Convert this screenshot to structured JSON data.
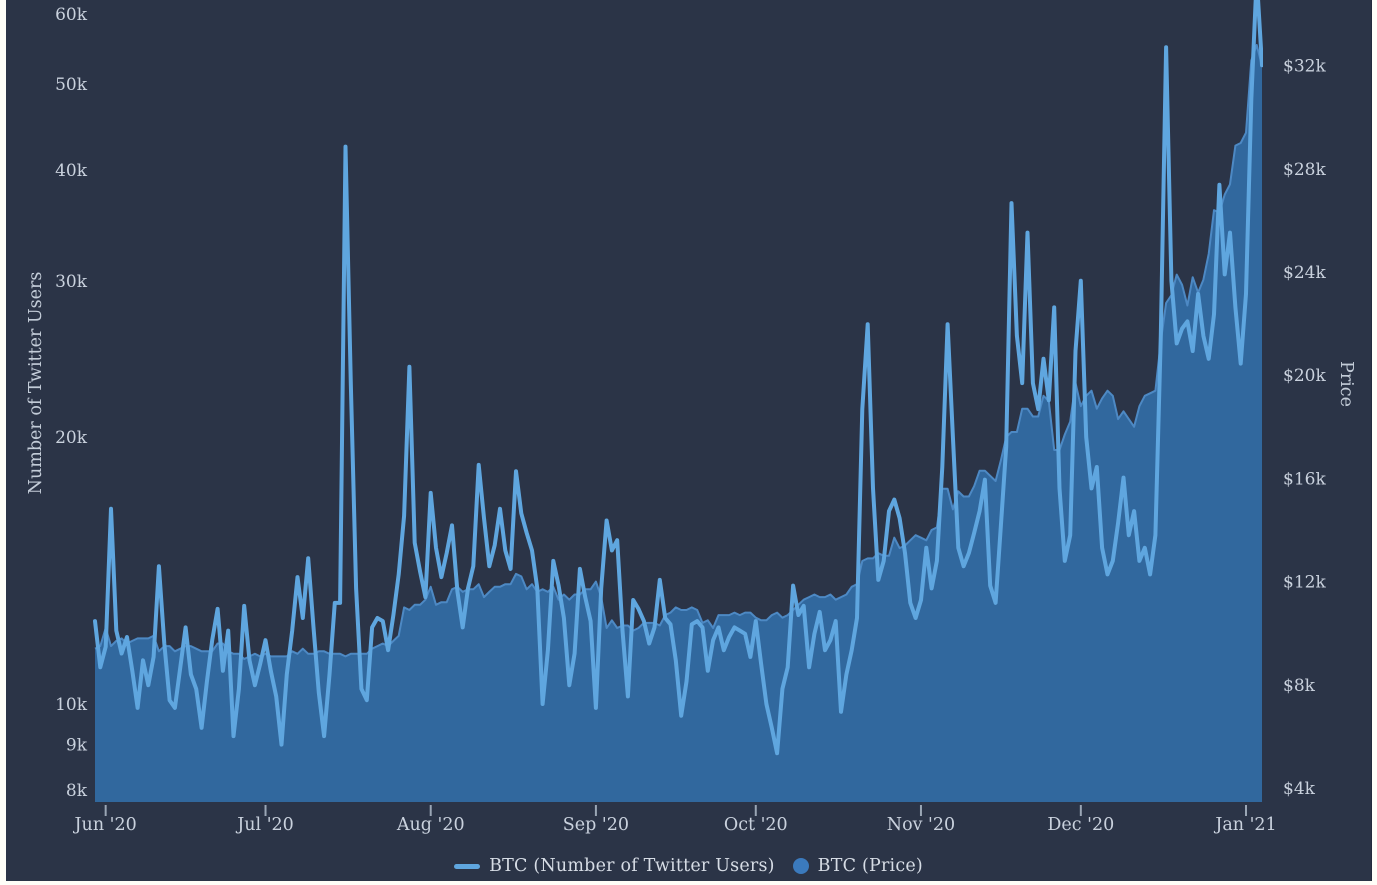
{
  "colors": {
    "page_background": "#fffef8",
    "panel_background": "#2b3447",
    "tick_text": "#c9d1dd",
    "axis_title_text": "#c3ccd8",
    "tick_mark": "#9aa6b5",
    "legend_text": "#d6dce5"
  },
  "legend": {
    "position": "bottom-center",
    "items": [
      {
        "label": "BTC (Number of Twitter Users)",
        "marker": "line",
        "color": "#5fa6df"
      },
      {
        "label": "BTC (Price)",
        "marker": "circle",
        "color": "#3b7abd"
      }
    ]
  },
  "chart_data": {
    "type": "line+area",
    "title": "",
    "grid": false,
    "legend_position": "bottom-center",
    "x_unit": "date",
    "x_start": "2020-05-30",
    "x_step_days": 1,
    "x_count": 220,
    "x_ticks": [
      {
        "label": "Jun '20",
        "date": "2020-06-01"
      },
      {
        "label": "Jul '20",
        "date": "2020-07-01"
      },
      {
        "label": "Aug '20",
        "date": "2020-08-01"
      },
      {
        "label": "Sep '20",
        "date": "2020-09-01"
      },
      {
        "label": "Oct '20",
        "date": "2020-10-01"
      },
      {
        "label": "Nov '20",
        "date": "2020-11-01"
      },
      {
        "label": "Dec '20",
        "date": "2020-12-01"
      },
      {
        "label": "Jan '21",
        "date": "2021-01-01"
      }
    ],
    "left_axis": {
      "label": "Number of Twitter Users",
      "scale": "log",
      "range_k": [
        7.75,
        62.3
      ],
      "ticks": [
        {
          "label": "8k",
          "value_k": 8
        },
        {
          "label": "9k",
          "value_k": 9
        },
        {
          "label": "10k",
          "value_k": 10
        },
        {
          "label": "20k",
          "value_k": 20
        },
        {
          "label": "30k",
          "value_k": 30
        },
        {
          "label": "40k",
          "value_k": 40
        },
        {
          "label": "50k",
          "value_k": 50
        },
        {
          "label": "60k",
          "value_k": 60
        }
      ]
    },
    "right_axis": {
      "label": "Price",
      "scale": "linear",
      "range_k": [
        3.4,
        34.5
      ],
      "ticks": [
        {
          "label": "$4k",
          "value_k": 4
        },
        {
          "label": "$8k",
          "value_k": 8
        },
        {
          "label": "$12k",
          "value_k": 12
        },
        {
          "label": "$16k",
          "value_k": 16
        },
        {
          "label": "$20k",
          "value_k": 20
        },
        {
          "label": "$24k",
          "value_k": 24
        },
        {
          "label": "$28k",
          "value_k": 28
        },
        {
          "label": "$32k",
          "value_k": 32
        }
      ]
    },
    "series": [
      {
        "name": "BTC (Number of Twitter Users)",
        "type": "line",
        "axis": "left",
        "unit": "thousands of users",
        "color": "#5fa6df",
        "values_k": [
          12.4,
          11.0,
          11.6,
          16.6,
          12.1,
          11.4,
          11.9,
          10.9,
          9.9,
          11.2,
          10.5,
          11.3,
          14.3,
          11.7,
          10.1,
          9.9,
          11.0,
          12.2,
          10.8,
          10.4,
          9.4,
          10.6,
          11.8,
          12.8,
          10.9,
          12.1,
          9.2,
          10.4,
          12.9,
          11.2,
          10.5,
          11.1,
          11.8,
          10.9,
          10.2,
          9.0,
          10.8,
          12.1,
          13.9,
          12.5,
          14.6,
          12.2,
          10.3,
          9.2,
          10.8,
          13.0,
          13.0,
          42.5,
          23.0,
          13.5,
          10.4,
          10.1,
          12.2,
          12.5,
          12.4,
          11.5,
          12.6,
          14.0,
          16.3,
          24.0,
          15.2,
          14.1,
          13.2,
          17.3,
          15.0,
          13.9,
          14.8,
          15.9,
          13.4,
          12.2,
          13.5,
          14.3,
          18.6,
          16.2,
          14.3,
          15.1,
          16.6,
          14.9,
          14.2,
          18.3,
          16.4,
          15.6,
          14.9,
          13.5,
          10.0,
          11.5,
          14.5,
          13.6,
          12.5,
          10.5,
          11.4,
          14.2,
          13.2,
          12.4,
          9.9,
          13.5,
          16.1,
          14.9,
          15.3,
          12.1,
          10.2,
          13.1,
          12.8,
          12.4,
          11.7,
          12.2,
          13.8,
          12.5,
          12.3,
          11.2,
          9.7,
          10.6,
          12.3,
          12.4,
          12.2,
          10.9,
          11.8,
          12.2,
          11.5,
          11.9,
          12.2,
          12.1,
          12.0,
          11.3,
          12.4,
          11.1,
          10.0,
          9.4,
          8.8,
          10.4,
          11.0,
          13.6,
          12.6,
          12.9,
          11.0,
          12.0,
          12.7,
          11.5,
          11.8,
          12.4,
          9.8,
          10.8,
          11.5,
          12.5,
          21.5,
          26.8,
          17.5,
          13.8,
          14.5,
          16.5,
          17.0,
          16.2,
          14.8,
          13.0,
          12.5,
          13.1,
          15.0,
          13.5,
          14.5,
          18.5,
          26.8,
          20.0,
          15.0,
          14.3,
          14.8,
          15.6,
          16.5,
          17.9,
          13.6,
          13.0,
          15.9,
          19.5,
          36.7,
          26.0,
          23.0,
          34.0,
          23.0,
          21.5,
          24.5,
          22.0,
          28.0,
          17.5,
          14.5,
          15.5,
          25.0,
          30.0,
          20.0,
          17.5,
          18.5,
          15.0,
          14.0,
          14.5,
          16.0,
          18.0,
          15.5,
          16.5,
          14.5,
          15.0,
          14.0,
          15.5,
          26.0,
          55.0,
          30.0,
          25.5,
          26.5,
          27.0,
          25.0,
          29.0,
          26.0,
          24.5,
          27.5,
          38.5,
          30.5,
          34.0,
          28.0,
          24.2,
          29.0,
          48.0,
          66.0,
          52.5
        ]
      },
      {
        "name": "BTC (Price)",
        "type": "area",
        "axis": "right",
        "unit": "thousands of USD",
        "color": "#31689e",
        "edge_color": "#4d89c4",
        "values_k": [
          9.4,
          9.5,
          10.2,
          9.5,
          9.7,
          9.8,
          9.6,
          9.7,
          9.8,
          9.8,
          9.8,
          9.9,
          9.3,
          9.5,
          9.5,
          9.3,
          9.4,
          9.5,
          9.5,
          9.4,
          9.3,
          9.3,
          9.3,
          9.6,
          9.6,
          9.3,
          9.2,
          9.2,
          9.0,
          9.1,
          9.2,
          9.1,
          9.2,
          9.1,
          9.1,
          9.1,
          9.1,
          9.3,
          9.2,
          9.4,
          9.2,
          9.2,
          9.3,
          9.3,
          9.2,
          9.2,
          9.2,
          9.1,
          9.2,
          9.2,
          9.2,
          9.2,
          9.4,
          9.5,
          9.6,
          9.5,
          9.7,
          9.9,
          11.0,
          10.9,
          11.1,
          11.1,
          11.3,
          11.8,
          11.1,
          11.2,
          11.2,
          11.7,
          11.8,
          11.6,
          11.7,
          11.7,
          11.9,
          11.4,
          11.6,
          11.8,
          11.8,
          11.9,
          11.9,
          12.3,
          12.2,
          11.7,
          11.9,
          11.6,
          11.7,
          11.6,
          11.8,
          11.3,
          11.5,
          11.3,
          11.5,
          11.5,
          11.7,
          11.7,
          12.0,
          11.4,
          10.2,
          10.5,
          10.2,
          10.3,
          10.3,
          10.1,
          10.2,
          10.4,
          10.4,
          10.4,
          10.3,
          10.7,
          10.8,
          11.0,
          10.9,
          10.9,
          11.0,
          10.9,
          10.4,
          10.5,
          10.2,
          10.7,
          10.7,
          10.7,
          10.8,
          10.7,
          10.8,
          10.8,
          10.6,
          10.5,
          10.5,
          10.7,
          10.8,
          10.6,
          10.7,
          10.9,
          11.1,
          11.3,
          11.4,
          11.5,
          11.4,
          11.4,
          11.5,
          11.3,
          11.4,
          11.5,
          11.8,
          11.9,
          12.8,
          12.9,
          12.9,
          13.1,
          13.0,
          13.0,
          13.7,
          13.3,
          13.4,
          13.6,
          13.8,
          13.7,
          13.6,
          14.0,
          14.1,
          15.6,
          15.6,
          14.8,
          15.5,
          15.3,
          15.3,
          15.7,
          16.3,
          16.3,
          16.1,
          15.9,
          16.7,
          17.6,
          17.8,
          17.8,
          18.7,
          18.7,
          18.4,
          18.4,
          19.2,
          19.0,
          17.1,
          17.1,
          17.7,
          18.2,
          19.7,
          18.8,
          19.2,
          19.4,
          18.7,
          19.1,
          19.4,
          19.2,
          18.3,
          18.6,
          18.3,
          18.0,
          18.8,
          19.2,
          19.3,
          19.4,
          21.3,
          22.8,
          23.1,
          23.9,
          23.5,
          22.7,
          23.8,
          23.2,
          23.7,
          24.7,
          26.4,
          26.3,
          27.0,
          27.4,
          28.9,
          29.0,
          29.4,
          32.2,
          32.8,
          32.0
        ]
      }
    ]
  }
}
